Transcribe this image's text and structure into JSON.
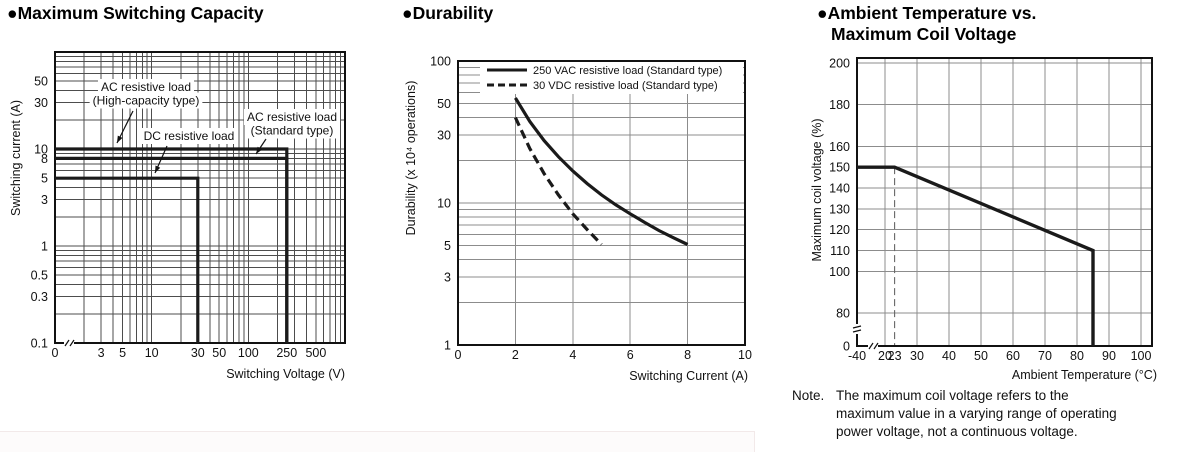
{
  "page": {
    "bullet": "●",
    "background": "#ffffff"
  },
  "chart_data": [
    {
      "type": "line",
      "title": "Maximum Switching Capacity",
      "xlabel": "Switching Voltage (V)",
      "ylabel": "Switching current (A)",
      "x_scale": "log",
      "y_scale": "log",
      "x_range": [
        1,
        1000
      ],
      "y_range": [
        0.1,
        100
      ],
      "x_axis_break": true,
      "grid": "full-log",
      "x_ticks": [
        {
          "v": 1,
          "label": "0"
        },
        {
          "v": 3,
          "label": "3"
        },
        {
          "v": 5,
          "label": "5"
        },
        {
          "v": 10,
          "label": "10"
        },
        {
          "v": 30,
          "label": "30"
        },
        {
          "v": 50,
          "label": "50"
        },
        {
          "v": 100,
          "label": "100"
        },
        {
          "v": 250,
          "label": "250"
        },
        {
          "v": 500,
          "label": "500"
        }
      ],
      "y_ticks": [
        {
          "v": 50,
          "label": "50"
        },
        {
          "v": 30,
          "label": "30"
        },
        {
          "v": 10,
          "label": "10"
        },
        {
          "v": 8,
          "label": "8"
        },
        {
          "v": 5,
          "label": "5"
        },
        {
          "v": 3,
          "label": "3"
        },
        {
          "v": 1,
          "label": "1"
        },
        {
          "v": 0.5,
          "label": "0.5"
        },
        {
          "v": 0.3,
          "label": "0.3"
        },
        {
          "v": 0.1,
          "label": "0.1"
        }
      ],
      "series": [
        {
          "name": "AC resistive load (High-capacity type)",
          "points": [
            [
              1,
              10
            ],
            [
              250,
              10
            ],
            [
              250,
              0.1
            ]
          ]
        },
        {
          "name": "AC resistive load (Standard type)",
          "points": [
            [
              1,
              8
            ],
            [
              250,
              8
            ],
            [
              250,
              0.1
            ]
          ]
        },
        {
          "name": "DC resistive load",
          "points": [
            [
              1,
              5
            ],
            [
              30,
              5
            ],
            [
              30,
              0.1
            ]
          ]
        }
      ],
      "annotations": [
        {
          "lines": [
            "AC resistive load",
            "(High-capacity type)"
          ],
          "cx": 146,
          "y": 63,
          "arrow": [
            [
              133,
              83
            ],
            [
              117,
              115
            ]
          ]
        },
        {
          "lines": [
            "DC resistive load"
          ],
          "cx": 189,
          "y": 112,
          "arrow": [
            [
              167,
              118
            ],
            [
              155,
              145
            ]
          ]
        },
        {
          "lines": [
            "AC resistive load",
            "(Standard type)"
          ],
          "cx": 292,
          "y": 93,
          "arrow": [
            [
              266,
              111
            ],
            [
              256,
              126
            ]
          ]
        }
      ],
      "colors": {
        "curve": "#1a1a1a",
        "grid": "#4d4d4d",
        "border": "#111111"
      }
    },
    {
      "type": "line",
      "title": "Durability",
      "xlabel": "Switching Current (A)",
      "ylabel": "Durability (x 10⁴ operations)",
      "x_scale": "linear",
      "y_scale": "log",
      "x_range": [
        0,
        10
      ],
      "y_range": [
        1,
        100
      ],
      "x_grid": [
        2,
        4,
        6,
        8,
        10
      ],
      "x_ticks": [
        {
          "v": 0,
          "label": "0"
        },
        {
          "v": 2,
          "label": "2"
        },
        {
          "v": 4,
          "label": "4"
        },
        {
          "v": 6,
          "label": "6"
        },
        {
          "v": 8,
          "label": "8"
        },
        {
          "v": 10,
          "label": "10"
        }
      ],
      "y_ticks": [
        {
          "v": 100,
          "label": "100"
        },
        {
          "v": 50,
          "label": "50"
        },
        {
          "v": 30,
          "label": "30"
        },
        {
          "v": 10,
          "label": "10"
        },
        {
          "v": 5,
          "label": "5"
        },
        {
          "v": 3,
          "label": "3"
        },
        {
          "v": 1,
          "label": "1"
        }
      ],
      "legend": [
        {
          "label": "250 VAC resistive load (Standard type)",
          "dash": false
        },
        {
          "label": "30 VDC resistive load (Standard type)",
          "dash": true
        }
      ],
      "series": [
        {
          "name": "250 VAC resistive load (Standard type)",
          "dash": false,
          "points": [
            [
              2,
              55
            ],
            [
              2.5,
              37.5
            ],
            [
              3,
              27.5
            ],
            [
              3.5,
              21.2
            ],
            [
              4,
              16.8
            ],
            [
              4.5,
              13.7
            ],
            [
              5,
              11.4
            ],
            [
              5.5,
              9.7
            ],
            [
              6,
              8.4
            ],
            [
              6.5,
              7.3
            ],
            [
              7,
              6.4
            ],
            [
              7.5,
              5.7
            ],
            [
              8,
              5.1
            ]
          ]
        },
        {
          "name": "30 VDC resistive load (Standard type)",
          "dash": true,
          "points": [
            [
              2,
              40
            ],
            [
              2.5,
              24.2
            ],
            [
              3,
              16.1
            ],
            [
              3.5,
              11.4
            ],
            [
              4,
              8.4
            ],
            [
              4.5,
              6.5
            ],
            [
              5,
              5.1
            ]
          ]
        }
      ],
      "colors": {
        "curve": "#1a1a1a",
        "grid": "#8c8c8c",
        "border": "#111111"
      }
    },
    {
      "type": "line",
      "title": "Ambient Temperature vs. Maximum Coil Voltage",
      "title_lines": [
        "Ambient Temperature vs.",
        "Maximum Coil Voltage"
      ],
      "xlabel": "Ambient Temperature (°C)",
      "ylabel": "Maximum coil voltage (%)",
      "x_scale": "linear-with-break",
      "y_scale": "linear-with-break",
      "x_range": [
        -40,
        100
      ],
      "y_range": [
        0,
        200
      ],
      "x_axis_break": true,
      "y_axis_break": true,
      "x_grid": [
        20,
        30,
        40,
        50,
        60,
        70,
        80,
        90,
        100
      ],
      "y_grid": [
        80,
        100,
        110,
        120,
        130,
        140,
        150,
        160,
        180,
        200
      ],
      "x_ticks": [
        {
          "v": -40,
          "label": "-40"
        },
        {
          "v": 20,
          "label": "20"
        },
        {
          "v": 23,
          "label": "23"
        },
        {
          "v": 30,
          "label": "30"
        },
        {
          "v": 40,
          "label": "40"
        },
        {
          "v": 50,
          "label": "50"
        },
        {
          "v": 60,
          "label": "60"
        },
        {
          "v": 70,
          "label": "70"
        },
        {
          "v": 80,
          "label": "80"
        },
        {
          "v": 90,
          "label": "90"
        },
        {
          "v": 100,
          "label": "100"
        }
      ],
      "y_ticks": [
        {
          "v": 200,
          "label": "200"
        },
        {
          "v": 180,
          "label": "180"
        },
        {
          "v": 160,
          "label": "160"
        },
        {
          "v": 150,
          "label": "150"
        },
        {
          "v": 140,
          "label": "140"
        },
        {
          "v": 130,
          "label": "130"
        },
        {
          "v": 120,
          "label": "120"
        },
        {
          "v": 110,
          "label": "110"
        },
        {
          "v": 100,
          "label": "100"
        },
        {
          "v": 80,
          "label": "80"
        },
        {
          "v": 0,
          "label": "0"
        }
      ],
      "guide": {
        "x": 23,
        "top": 150,
        "style": "dashed"
      },
      "series": [
        {
          "name": "Maximum coil voltage",
          "points": [
            [
              -40,
              150
            ],
            [
              23,
              150
            ],
            [
              85,
              110
            ],
            [
              85,
              0
            ]
          ]
        }
      ],
      "colors": {
        "curve": "#1a1a1a",
        "grid": "#8c8c8c",
        "border": "#111111",
        "guide": "#666666"
      }
    }
  ],
  "note": {
    "label": "Note.",
    "lines": [
      "The maximum coil voltage refers to the",
      "maximum value in a varying range of operating",
      "power voltage, not a continuous voltage."
    ]
  }
}
